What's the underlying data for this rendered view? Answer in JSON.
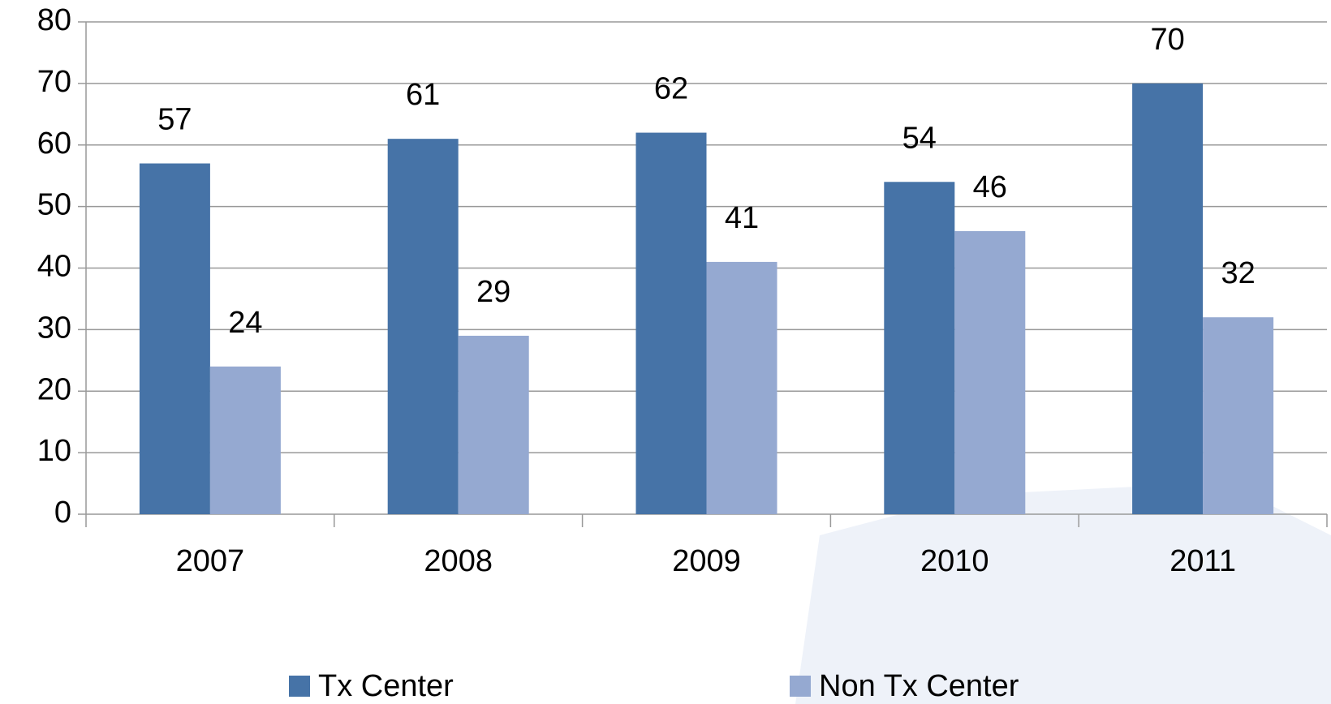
{
  "chart_data": {
    "type": "bar",
    "categories": [
      "2007",
      "2008",
      "2009",
      "2010",
      "2011"
    ],
    "series": [
      {
        "name": "Tx Center",
        "color": "#4673a7",
        "values": [
          57,
          61,
          62,
          54,
          70
        ]
      },
      {
        "name": "Non Tx Center",
        "color": "#95a9d1",
        "values": [
          24,
          29,
          41,
          46,
          32
        ]
      }
    ],
    "ylim": [
      0,
      80
    ],
    "yticks": [
      0,
      10,
      20,
      30,
      40,
      50,
      60,
      70,
      80
    ],
    "grid": true,
    "legend": "bottom"
  }
}
